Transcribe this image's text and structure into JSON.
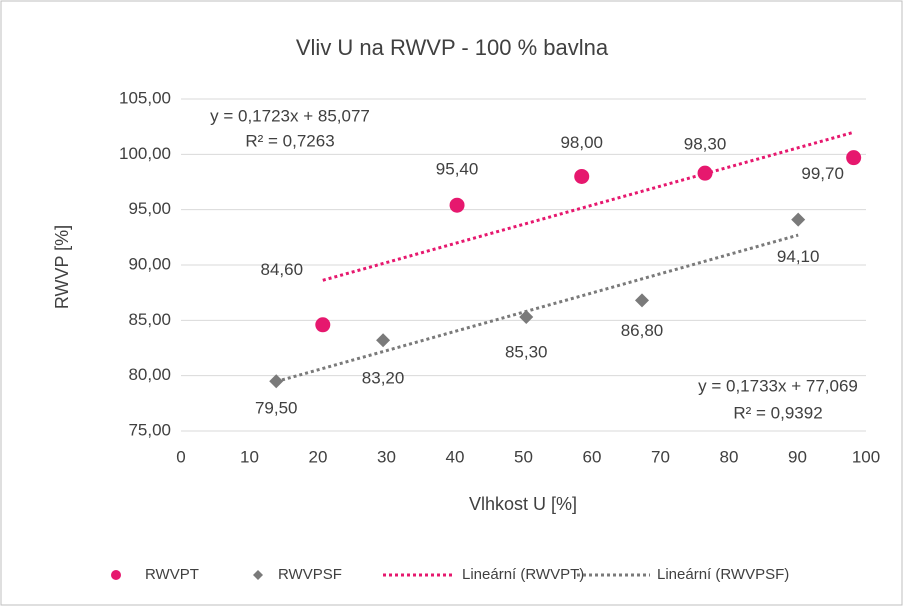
{
  "chart_data": {
    "type": "scatter",
    "title": "Vliv U na RWVP - 100 % bavlna",
    "x_label": "Vlhkost U [%]",
    "y_label": "RWVP [%]",
    "xlim": [
      0,
      100
    ],
    "xticks": [
      0,
      10,
      20,
      30,
      40,
      50,
      60,
      70,
      80,
      90,
      100
    ],
    "ylim": [
      75,
      105
    ],
    "yticks": [
      {
        "value": 75,
        "label": "75,00"
      },
      {
        "value": 80,
        "label": "80,00"
      },
      {
        "value": 85,
        "label": "85,00"
      },
      {
        "value": 90,
        "label": "90,00"
      },
      {
        "value": 95,
        "label": "95,00"
      },
      {
        "value": 100,
        "label": "100,00"
      },
      {
        "value": 105,
        "label": "105,00"
      }
    ],
    "grid": true,
    "legend": "bottom",
    "series": [
      {
        "name": "RWVPT",
        "color": "#e6186e",
        "marker": "circle",
        "x": [
          20.7,
          40.3,
          58.5,
          76.5,
          98.2
        ],
        "values": [
          84.6,
          95.4,
          98.0,
          98.3,
          99.7
        ],
        "value_labels": [
          "84,60",
          "95,40",
          "98,00",
          "98,30",
          "99,70"
        ]
      },
      {
        "name": "RWVPSF",
        "color": "#7a7a7a",
        "marker": "diamond",
        "x": [
          13.9,
          29.5,
          50.4,
          67.3,
          90.1
        ],
        "values": [
          79.5,
          83.2,
          85.3,
          86.8,
          94.1
        ],
        "value_labels": [
          "79,50",
          "83,20",
          "85,30",
          "86,80",
          "94,10"
        ]
      }
    ],
    "trendlines": [
      {
        "name": "Lineární (RWVPT)",
        "color": "#e6186e",
        "equation": "y = 0,1723x + 85,077",
        "r2": "R² = 0,7263"
      },
      {
        "name": "Lineární (RWVPSF)",
        "color": "#7a7a7a",
        "equation": "y = 0,1733x + 77,069",
        "r2": "R² = 0,9392"
      }
    ]
  }
}
